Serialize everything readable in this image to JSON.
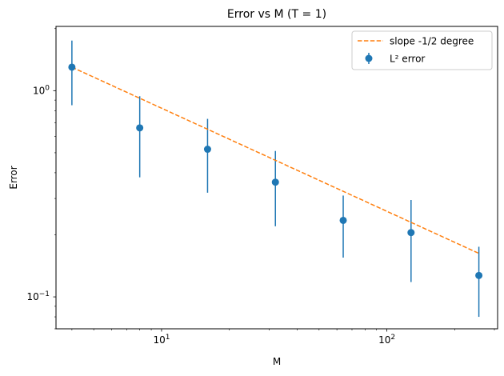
{
  "chart_data": {
    "type": "scatter",
    "title": "Error vs M   (T = 1)",
    "xlabel": "M",
    "ylabel": "Error",
    "xscale": "log",
    "yscale": "log",
    "xlim": [
      3.4,
      310
    ],
    "ylim": [
      0.07,
      2.05
    ],
    "grid": false,
    "legend_position": "top-right",
    "x_ticks": [
      {
        "value": 10,
        "base": "10",
        "exp": "1"
      },
      {
        "value": 100,
        "base": "10",
        "exp": "2"
      }
    ],
    "y_ticks": [
      {
        "value": 1,
        "base": "10",
        "exp": "0"
      },
      {
        "value": 0.1,
        "base": "10",
        "exp": "−1"
      }
    ],
    "series": [
      {
        "name": "L² error",
        "kind": "errorbar",
        "color": "#1f77b4",
        "x": [
          4,
          8,
          16,
          32,
          64,
          128,
          256
        ],
        "y": [
          1.3,
          0.66,
          0.52,
          0.36,
          0.235,
          0.205,
          0.127
        ],
        "yerr_low": [
          0.85,
          0.38,
          0.32,
          0.22,
          0.155,
          0.118,
          0.08
        ],
        "yerr_high": [
          1.75,
          0.94,
          0.73,
          0.51,
          0.31,
          0.295,
          0.175
        ]
      },
      {
        "name": "slope -1/2 degree",
        "kind": "line",
        "style": "dashed",
        "color": "#ff7f0e",
        "x": [
          4,
          256
        ],
        "y": [
          1.3,
          0.1625
        ]
      }
    ]
  }
}
